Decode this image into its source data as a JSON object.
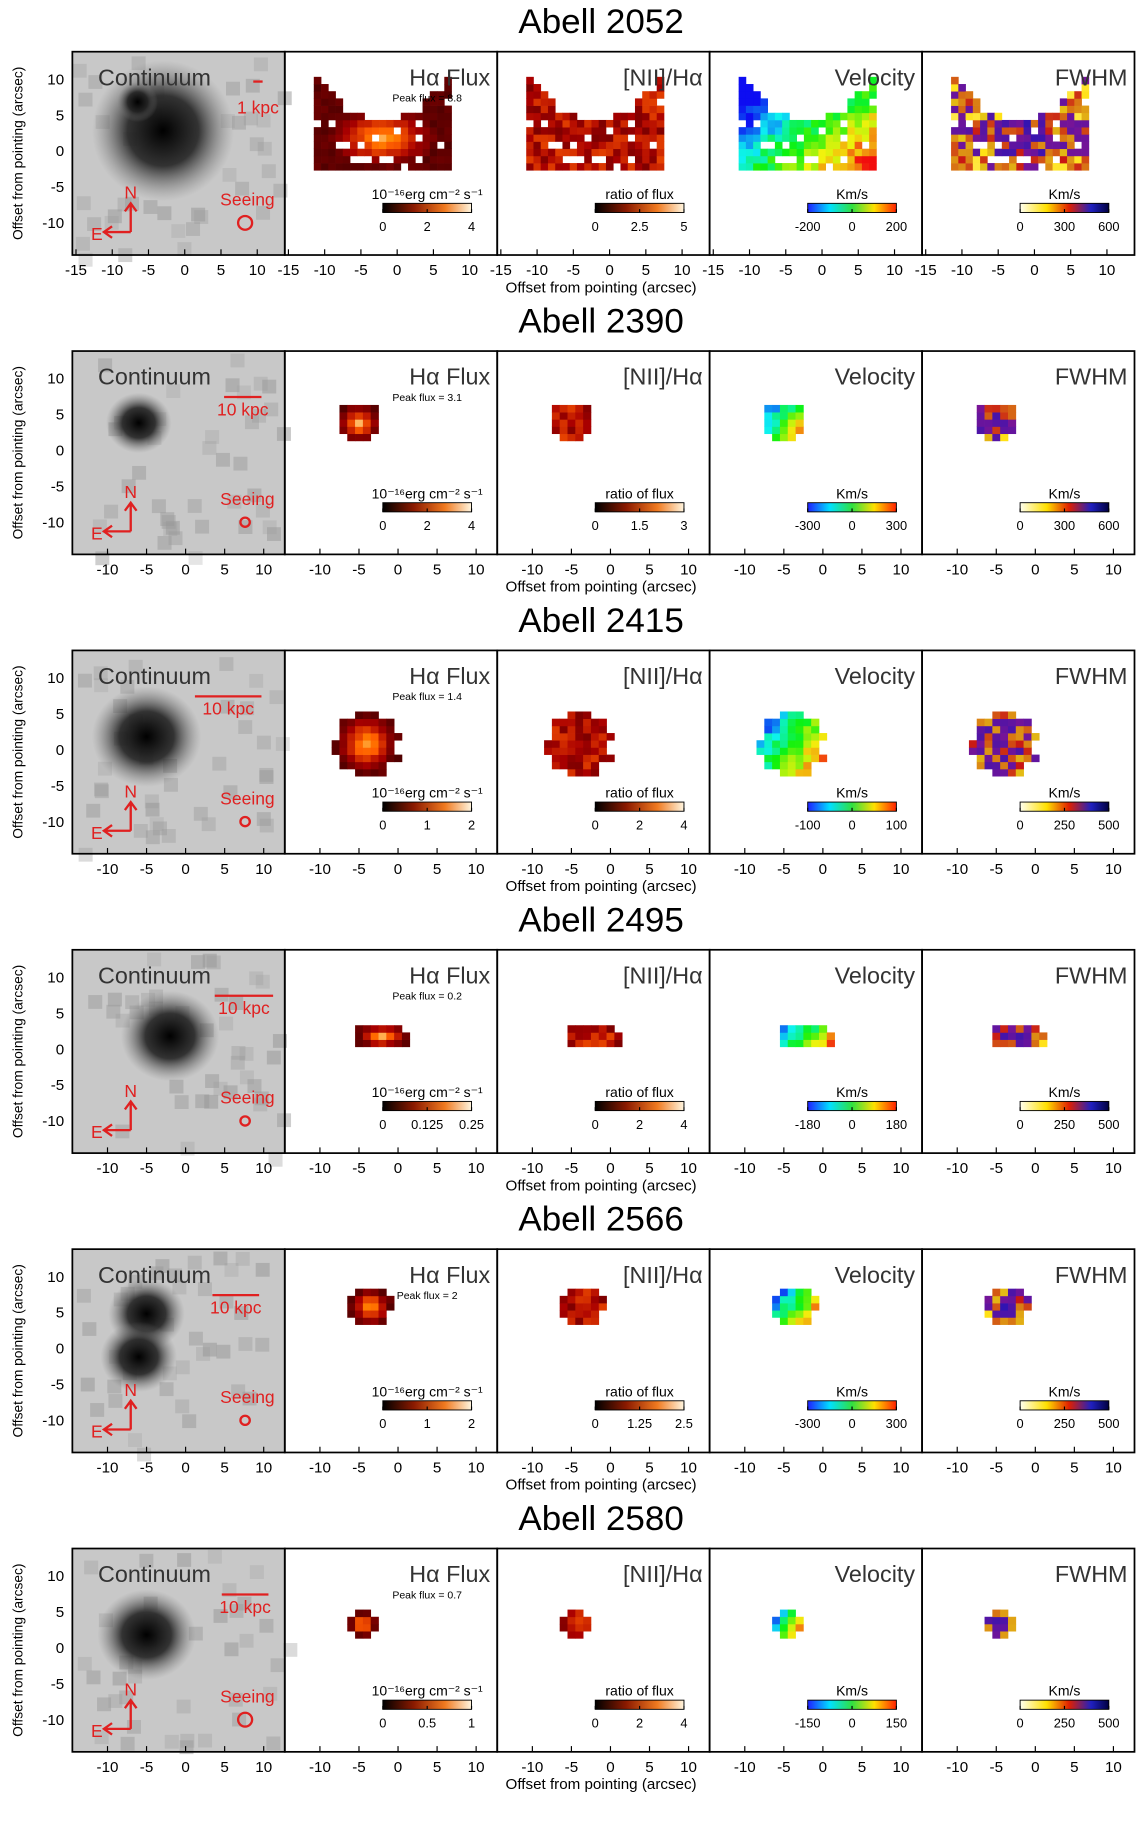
{
  "figure": {
    "x_label": "Offset from pointing (arcsec)",
    "y_label": "Offset from pointing (arcsec)",
    "panel_titles": [
      "Continuum",
      "Hα Flux",
      "[NII]/Hα",
      "Velocity",
      "FWHM"
    ],
    "colorbar_labels": [
      "10⁻¹⁶erg cm⁻² s⁻¹",
      "ratio of flux",
      "Km/s",
      "Km/s"
    ],
    "seeing_label": "Seeing",
    "north_label": "N",
    "east_label": "E",
    "rows": [
      {
        "title": "Abell 2052",
        "scale_label": "1 kpc",
        "peak_flux": "Peak flux = 8.8",
        "xlim": [
          -15.5,
          13.8
        ],
        "xticks": [
          -15,
          -10,
          -5,
          0,
          5,
          10
        ],
        "ylim": [
          -14.3,
          14
        ],
        "yticks": [
          -10,
          -5,
          0,
          5,
          10
        ],
        "colorbar_ticks": [
          [
            0,
            2,
            4
          ],
          [
            0,
            2.5,
            5
          ],
          [
            -200,
            0,
            200
          ],
          [
            0,
            300,
            600
          ]
        ]
      },
      {
        "title": "Abell 2390",
        "scale_label": "10 kpc",
        "peak_flux": "Peak flux = 3.1",
        "xlim": [
          -14.5,
          12.7
        ],
        "xticks": [
          -10,
          -5,
          0,
          5,
          10
        ],
        "ylim": [
          -14.3,
          14
        ],
        "yticks": [
          -10,
          -5,
          0,
          5,
          10
        ],
        "colorbar_ticks": [
          [
            0,
            2,
            4
          ],
          [
            0,
            1.5,
            3
          ],
          [
            -300,
            0,
            300
          ],
          [
            0,
            300,
            600
          ]
        ]
      },
      {
        "title": "Abell 2415",
        "scale_label": "10 kpc",
        "peak_flux": "Peak flux = 1.4",
        "xlim": [
          -14.5,
          12.7
        ],
        "xticks": [
          -10,
          -5,
          0,
          5,
          10
        ],
        "ylim": [
          -14.3,
          14
        ],
        "yticks": [
          -10,
          -5,
          0,
          5,
          10
        ],
        "colorbar_ticks": [
          [
            0,
            1,
            2
          ],
          [
            0,
            2,
            4
          ],
          [
            -100,
            0,
            100
          ],
          [
            0,
            250,
            500
          ]
        ]
      },
      {
        "title": "Abell 2495",
        "scale_label": "10 kpc",
        "peak_flux": "Peak flux = 0.2",
        "xlim": [
          -14.5,
          12.7
        ],
        "xticks": [
          -10,
          -5,
          0,
          5,
          10
        ],
        "ylim": [
          -14.3,
          14
        ],
        "yticks": [
          -10,
          -5,
          0,
          5,
          10
        ],
        "colorbar_ticks": [
          [
            0,
            0.125,
            0.25
          ],
          [
            0,
            2,
            4
          ],
          [
            -180,
            0,
            180
          ],
          [
            0,
            250,
            500
          ]
        ]
      },
      {
        "title": "Abell 2566",
        "scale_label": "10 kpc",
        "peak_flux": "Peak flux = 2",
        "xlim": [
          -14.5,
          12.7
        ],
        "xticks": [
          -10,
          -5,
          0,
          5,
          10
        ],
        "ylim": [
          -14.3,
          14
        ],
        "yticks": [
          -10,
          -5,
          0,
          5,
          10
        ],
        "colorbar_ticks": [
          [
            0,
            1,
            2
          ],
          [
            0,
            1.25,
            2.5
          ],
          [
            -300,
            0,
            300
          ],
          [
            0,
            250,
            500
          ]
        ]
      },
      {
        "title": "Abell 2580",
        "scale_label": "10 kpc",
        "peak_flux": "Peak flux = 0.7",
        "xlim": [
          -14.5,
          12.7
        ],
        "xticks": [
          -10,
          -5,
          0,
          5,
          10
        ],
        "ylim": [
          -14.3,
          14
        ],
        "yticks": [
          -10,
          -5,
          0,
          5,
          10
        ],
        "colorbar_ticks": [
          [
            0,
            0.5,
            1
          ],
          [
            0,
            2,
            4
          ],
          [
            -150,
            0,
            150
          ],
          [
            0,
            250,
            500
          ]
        ]
      }
    ]
  }
}
